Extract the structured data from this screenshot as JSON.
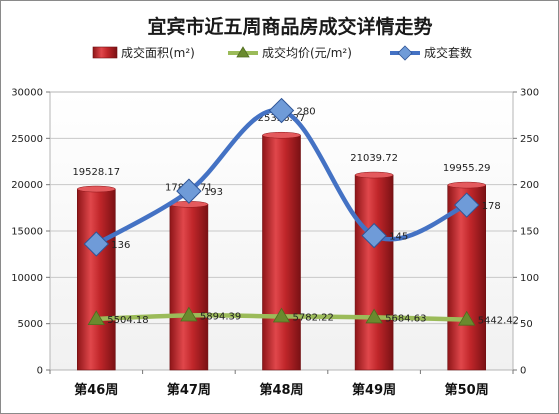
{
  "chart_data": {
    "type": "bar",
    "title": "宜宾市近五周商品房成交详情走势",
    "categories": [
      "第46周",
      "第47周",
      "第48周",
      "第49周",
      "第50周"
    ],
    "series": [
      {
        "name": "成交面积(m²)",
        "type": "bar",
        "axis": "left",
        "color": "#c0262a",
        "values": [
          19528.17,
          17880.71,
          25336.27,
          21039.72,
          19955.29
        ],
        "labels": [
          "19528.17",
          "17880.71",
          "25336.27",
          "21039.72",
          "19955.29"
        ]
      },
      {
        "name": "成交均价(元/m²)",
        "type": "line",
        "axis": "left",
        "color": "#9bbb59",
        "values": [
          5504.18,
          5894.39,
          5782.22,
          5684.63,
          5442.42
        ],
        "labels": [
          "5504.18",
          "5894.39",
          "5782.22",
          "5684.63",
          "5442.42"
        ]
      },
      {
        "name": "成交套数",
        "type": "line",
        "axis": "right",
        "color": "#4f81bd",
        "values": [
          136,
          193,
          280,
          145,
          178
        ],
        "labels": [
          "136",
          "193",
          "280",
          "145",
          "178"
        ]
      }
    ],
    "left_axis": {
      "min": 0,
      "max": 30000,
      "step": 5000,
      "ticks": [
        "0",
        "5000",
        "10000",
        "15000",
        "20000",
        "25000",
        "30000"
      ]
    },
    "right_axis": {
      "min": 0,
      "max": 300,
      "step": 50,
      "ticks": [
        "0",
        "50",
        "100",
        "150",
        "200",
        "250",
        "300"
      ]
    },
    "grid": true,
    "legend_position": "top"
  }
}
